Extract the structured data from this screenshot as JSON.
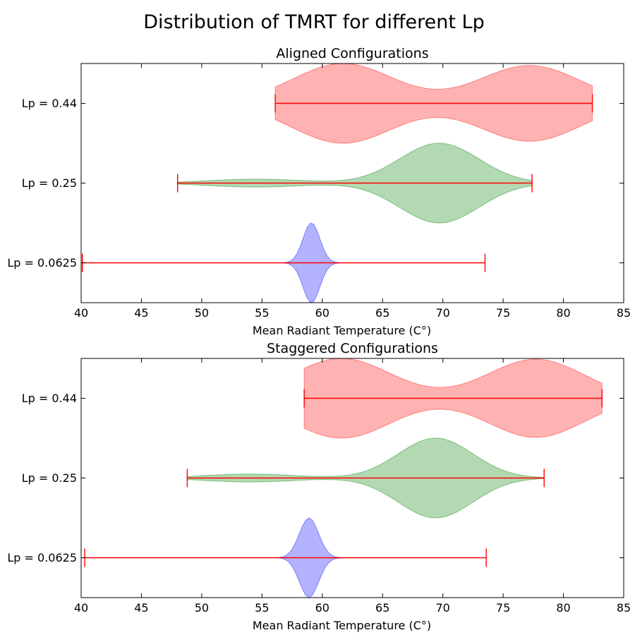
{
  "figure": {
    "title": "Distribution of TMRT for different Lp"
  },
  "chart_data": [
    {
      "type": "violin",
      "orientation": "horizontal",
      "title": "Aligned Configurations",
      "xlabel": "Mean Radiant Temperature (C°)",
      "ylabel": "",
      "xlim": [
        40,
        85
      ],
      "xticks": [
        40,
        45,
        50,
        55,
        60,
        65,
        70,
        75,
        80,
        85
      ],
      "grid": false,
      "categories": [
        "Lp = 0.0625",
        "Lp = 0.25",
        "Lp = 0.44"
      ],
      "series": [
        {
          "category": "Lp = 0.0625",
          "color": "#0000ff",
          "min": 40.1,
          "max": 73.5,
          "modes": [
            {
              "center": 59.1,
              "width": 0.7,
              "height": 1.0
            }
          ],
          "max_half_width_fraction": 0.25
        },
        {
          "category": "Lp = 0.25",
          "color": "#008000",
          "min": 48.0,
          "max": 77.4,
          "modes": [
            {
              "center": 54.5,
              "width": 4.0,
              "height": 0.1
            },
            {
              "center": 69.7,
              "width": 3.3,
              "height": 1.0
            }
          ],
          "max_half_width_fraction": 0.25
        },
        {
          "category": "Lp = 0.44",
          "color": "#ff0000",
          "min": 56.1,
          "max": 82.4,
          "modes": [
            {
              "center": 61.7,
              "width": 4.2,
              "height": 1.0
            },
            {
              "center": 77.2,
              "width": 4.2,
              "height": 0.95
            }
          ],
          "max_half_width_fraction": 0.25
        }
      ]
    },
    {
      "type": "violin",
      "orientation": "horizontal",
      "title": "Staggered Configurations",
      "xlabel": "Mean Radiant Temperature (C°)",
      "ylabel": "",
      "xlim": [
        40,
        85
      ],
      "xticks": [
        40,
        45,
        50,
        55,
        60,
        65,
        70,
        75,
        80,
        85
      ],
      "grid": false,
      "categories": [
        "Lp = 0.0625",
        "Lp = 0.25",
        "Lp = 0.44"
      ],
      "series": [
        {
          "category": "Lp = 0.0625",
          "color": "#0000ff",
          "min": 40.3,
          "max": 73.6,
          "modes": [
            {
              "center": 58.9,
              "width": 0.8,
              "height": 1.0
            }
          ],
          "max_half_width_fraction": 0.25
        },
        {
          "category": "Lp = 0.25",
          "color": "#008000",
          "min": 48.8,
          "max": 78.4,
          "modes": [
            {
              "center": 54.0,
              "width": 3.8,
              "height": 0.1
            },
            {
              "center": 69.4,
              "width": 3.1,
              "height": 1.0
            }
          ],
          "max_half_width_fraction": 0.25
        },
        {
          "category": "Lp = 0.44",
          "color": "#ff0000",
          "min": 58.5,
          "max": 83.2,
          "modes": [
            {
              "center": 61.6,
              "width": 4.1,
              "height": 1.0
            },
            {
              "center": 77.7,
              "width": 4.0,
              "height": 0.98
            }
          ],
          "max_half_width_fraction": 0.25
        }
      ]
    }
  ]
}
